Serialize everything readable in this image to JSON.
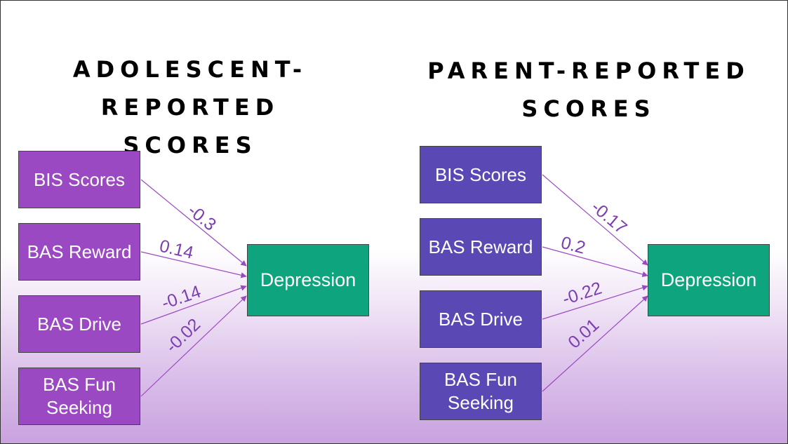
{
  "left_panel": {
    "title_line1": "ADOLESCENT-REPORTED",
    "title_line2": "SCORES",
    "predictors": [
      {
        "label": "BIS Scores",
        "coef": "-0.3"
      },
      {
        "label": "BAS Reward",
        "coef": "0.14"
      },
      {
        "label": "BAS Drive",
        "coef": "-0.14"
      },
      {
        "label": "BAS Fun Seeking",
        "coef": "-0.02"
      }
    ],
    "outcome": "Depression"
  },
  "right_panel": {
    "title_line1": "PARENT-REPORTED",
    "title_line2": "SCORES",
    "predictors": [
      {
        "label": "BIS Scores",
        "coef": "-0.17"
      },
      {
        "label": "BAS Reward",
        "coef": "0.2"
      },
      {
        "label": "BAS Drive",
        "coef": "-0.22"
      },
      {
        "label": "BAS Fun Seeking",
        "coef": "0.01"
      }
    ],
    "outcome": "Depression"
  },
  "colors": {
    "adolescent_box": "#9b49c3",
    "parent_box": "#5a48b4",
    "outcome_box": "#0ea57e",
    "arrow": "#9b49c3"
  }
}
